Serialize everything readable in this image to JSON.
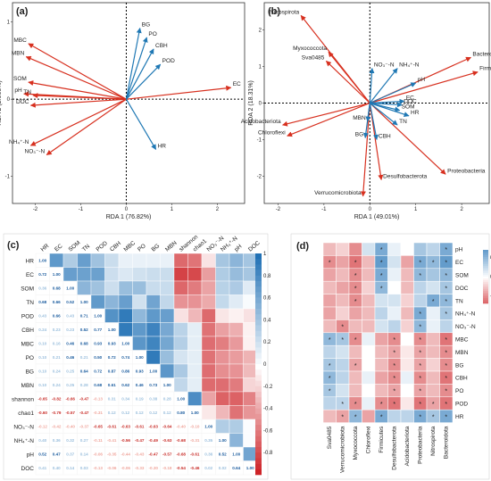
{
  "panels": {
    "a": {
      "label": "(a)",
      "xlabel": "RDA 1 (76.82%)",
      "ylabel": "RDA 2 (2.666%)",
      "xticks": [
        "-2",
        "-1",
        "0",
        "1",
        "2"
      ],
      "yticks": [
        "1",
        "0",
        "-1"
      ],
      "red_arrows": [
        {
          "name": "MBC",
          "x": -2.15,
          "y": 0.72
        },
        {
          "name": "MBN",
          "x": -2.2,
          "y": 0.55
        },
        {
          "name": "SOM",
          "x": -2.15,
          "y": 0.22
        },
        {
          "name": "pH",
          "x": -2.25,
          "y": 0.07
        },
        {
          "name": "TN",
          "x": -2.05,
          "y": 0.05
        },
        {
          "name": "DOC",
          "x": -2.1,
          "y": -0.08
        },
        {
          "name": "NH₄⁺-N",
          "x": -2.1,
          "y": -0.6
        },
        {
          "name": "NO₃⁻-N",
          "x": -1.75,
          "y": -0.72
        },
        {
          "name": "EC",
          "x": 2.3,
          "y": 0.15
        }
      ],
      "blue_arrows": [
        {
          "name": "BG",
          "x": 0.3,
          "y": 0.92
        },
        {
          "name": "PO",
          "x": 0.45,
          "y": 0.8
        },
        {
          "name": "CBH",
          "x": 0.6,
          "y": 0.65
        },
        {
          "name": "POD",
          "x": 0.75,
          "y": 0.45
        },
        {
          "name": "HR",
          "x": 0.65,
          "y": -0.65
        }
      ]
    },
    "b": {
      "label": "(b)",
      "xlabel": "RDA 1 (49.01%)",
      "ylabel": "RDA 2 (18.31%)",
      "xticks": [
        "-2",
        "-1",
        "0",
        "1",
        "2"
      ],
      "yticks": [
        "2",
        "1",
        "0",
        "-1",
        "-2"
      ],
      "red_arrows": [
        {
          "name": "Nitrospirota",
          "x": -1.5,
          "y": 2.4
        },
        {
          "name": "Myxococcota",
          "x": -0.9,
          "y": 1.4
        },
        {
          "name": "Sva0485",
          "x": -0.95,
          "y": 1.15
        },
        {
          "name": "Bacteroidota",
          "x": 2.2,
          "y": 1.25
        },
        {
          "name": "Firmicutes",
          "x": 2.35,
          "y": 0.85
        },
        {
          "name": "Acidobacteriota",
          "x": -1.9,
          "y": -0.6
        },
        {
          "name": "Chloroflexi",
          "x": -1.8,
          "y": -0.9
        },
        {
          "name": "Desulfobacterota",
          "x": 0.25,
          "y": -2.1
        },
        {
          "name": "Verrucomicrobiota",
          "x": -0.15,
          "y": -2.55
        },
        {
          "name": "Proteobacteria",
          "x": 1.65,
          "y": -1.95
        }
      ],
      "blue_arrows": [
        {
          "name": "NO₃⁻-N",
          "x": 0.05,
          "y": 0.95
        },
        {
          "name": "NH₄⁺-N",
          "x": 0.6,
          "y": 0.95
        },
        {
          "name": "pH",
          "x": 1.0,
          "y": 0.55
        },
        {
          "name": "EC",
          "x": 0.75,
          "y": 0.05
        },
        {
          "name": "DOC",
          "x": 0.7,
          "y": -0.05
        },
        {
          "name": "SOM",
          "x": 0.65,
          "y": -0.2
        },
        {
          "name": "HR",
          "x": 0.85,
          "y": -0.35
        },
        {
          "name": "TN",
          "x": 0.6,
          "y": -0.6
        },
        {
          "name": "MBN",
          "x": -0.05,
          "y": -0.5
        },
        {
          "name": "BG",
          "x": -0.1,
          "y": -0.95
        },
        {
          "name": "CBH",
          "x": 0.15,
          "y": -1.0
        }
      ]
    },
    "c": {
      "label": "(c)",
      "vars": [
        "HR",
        "EC",
        "SOM",
        "TN",
        "POD",
        "CBH",
        "MBC",
        "PO",
        "BG",
        "MBN",
        "shannon",
        "chao1",
        "NO₃⁻-N",
        "NH₄⁺-N",
        "pH",
        "DOC"
      ],
      "matrix": [
        [
          1.0,
          null,
          null,
          null,
          null,
          null,
          null,
          null,
          null,
          null,
          null,
          null,
          null,
          null,
          null,
          null
        ],
        [
          0.72,
          1.0,
          null,
          null,
          null,
          null,
          null,
          null,
          null,
          null,
          null,
          null,
          null,
          null,
          null,
          null
        ],
        [
          0.36,
          0.68,
          1.0,
          null,
          null,
          null,
          null,
          null,
          null,
          null,
          null,
          null,
          null,
          null,
          null,
          null
        ],
        [
          0.68,
          0.66,
          0.52,
          1.0,
          null,
          null,
          null,
          null,
          null,
          null,
          null,
          null,
          null,
          null,
          null,
          null
        ],
        [
          0.43,
          0.66,
          0.43,
          0.71,
          1.0,
          null,
          null,
          null,
          null,
          null,
          null,
          null,
          null,
          null,
          null,
          null
        ],
        [
          0.24,
          0.23,
          0.23,
          0.52,
          0.77,
          1.0,
          null,
          null,
          null,
          null,
          null,
          null,
          null,
          null,
          null,
          null
        ],
        [
          0.1,
          0.16,
          0.46,
          0.68,
          0.93,
          0.93,
          1.0,
          null,
          null,
          null,
          null,
          null,
          null,
          null,
          null,
          null
        ],
        [
          0.1,
          0.21,
          0.46,
          0.21,
          0.5,
          0.72,
          0.74,
          1.0,
          null,
          null,
          null,
          null,
          null,
          null,
          null,
          null
        ],
        [
          0.1,
          0.24,
          0.25,
          0.64,
          0.72,
          0.87,
          0.86,
          0.93,
          1.0,
          null,
          null,
          null,
          null,
          null,
          null,
          null
        ],
        [
          0.1,
          0.24,
          0.25,
          0.28,
          0.68,
          0.61,
          0.62,
          0.46,
          0.73,
          1.0,
          null,
          null,
          null,
          null,
          null,
          null
        ],
        [
          -0.65,
          -0.82,
          -0.66,
          -0.47,
          -0.13,
          0.31,
          0.34,
          0.19,
          0.38,
          0.28,
          1.0,
          null,
          null,
          null,
          null,
          null
        ],
        [
          -0.6,
          -0.79,
          -0.57,
          -0.47,
          -0.31,
          0.12,
          0.12,
          0.12,
          0.12,
          0.12,
          0.8,
          1.0,
          null,
          null,
          null,
          null
        ],
        [
          -0.12,
          -0.42,
          -0.4,
          -0.37,
          -0.65,
          -0.61,
          -0.63,
          -0.61,
          -0.63,
          -0.64,
          -0.4,
          -0.1,
          1.0,
          null,
          null,
          null
        ],
        [
          0.4,
          0.36,
          0.32,
          0.27,
          -0.11,
          -0.41,
          -0.56,
          -0.47,
          -0.49,
          -0.63,
          -0.68,
          -0.31,
          0.35,
          1.0,
          null,
          null
        ],
        [
          0.52,
          0.47,
          0.37,
          0.14,
          -0.06,
          -0.35,
          -0.44,
          -0.43,
          -0.47,
          -0.57,
          -0.68,
          -0.61,
          0.36,
          0.52,
          1.0,
          null
        ],
        [
          0.41,
          0.4,
          0.14,
          0.03,
          -0.13,
          -0.06,
          -0.06,
          -0.33,
          -0.3,
          -0.18,
          -0.54,
          -0.46,
          0.02,
          0.02,
          0.64,
          1.0
        ]
      ],
      "colorbar_ticks": [
        "1",
        "0.8",
        "0.6",
        "0.4",
        "0.2",
        "0",
        "-0.2",
        "-0.4",
        "-0.6",
        "-0.8"
      ]
    },
    "d": {
      "label": "(d)",
      "rows": [
        "pH",
        "EC",
        "SOM",
        "DOC",
        "TN",
        "NH₄⁺-N",
        "NO₃⁻-N",
        "MBC",
        "MBN",
        "BG",
        "CBH",
        "PO",
        "POD",
        "HR"
      ],
      "cols": [
        "Sva0485",
        "Verrucomicrobiota",
        "Myxococcota",
        "Chloroflexi",
        "Firmicutes",
        "Desulfobacterota",
        "Acidobacteriota",
        "Proteobacteria",
        "Nitrospirota",
        "Bacteroidota"
      ],
      "matrix": [
        [
          -0.3,
          -0.2,
          -0.5,
          0.2,
          0.6,
          0.1,
          0.0,
          0.4,
          0.3,
          0.6
        ],
        [
          -0.5,
          -0.4,
          -0.6,
          -0.3,
          0.7,
          0.2,
          -0.4,
          0.6,
          0.5,
          0.7
        ],
        [
          -0.4,
          -0.3,
          -0.5,
          -0.3,
          0.6,
          0.1,
          -0.3,
          0.5,
          0.4,
          0.5
        ],
        [
          -0.3,
          -0.4,
          -0.5,
          -0.2,
          0.5,
          0.0,
          -0.3,
          0.3,
          0.2,
          0.4
        ],
        [
          -0.4,
          -0.3,
          -0.5,
          -0.3,
          0.2,
          0.2,
          -0.2,
          0.3,
          0.6,
          0.5
        ],
        [
          -0.4,
          -0.2,
          -0.4,
          -0.3,
          0.3,
          0.1,
          -0.3,
          0.6,
          0.1,
          0.4
        ],
        [
          -0.3,
          -0.5,
          -0.3,
          -0.3,
          0.2,
          0.3,
          -0.2,
          0.5,
          0.1,
          0.3
        ],
        [
          0.5,
          0.4,
          -0.5,
          0.1,
          -0.4,
          -0.5,
          0.0,
          -0.5,
          -0.3,
          -0.6
        ],
        [
          0.3,
          0.2,
          -0.3,
          0.0,
          -0.3,
          -0.4,
          -0.1,
          -0.4,
          -0.3,
          -0.5
        ],
        [
          0.4,
          0.3,
          -0.4,
          0.0,
          -0.3,
          -0.5,
          -0.1,
          -0.4,
          -0.2,
          -0.5
        ],
        [
          0.5,
          0.3,
          -0.3,
          0.1,
          -0.4,
          -0.5,
          0.1,
          -0.5,
          -0.3,
          -0.6
        ],
        [
          0.4,
          0.2,
          -0.3,
          0.0,
          -0.3,
          -0.4,
          0.0,
          -0.4,
          -0.3,
          -0.5
        ],
        [
          0.3,
          0.3,
          -0.5,
          0.1,
          -0.5,
          -0.6,
          -0.1,
          -0.6,
          -0.4,
          -0.6
        ],
        [
          -0.3,
          -0.4,
          0.5,
          -0.4,
          0.6,
          0.3,
          0.3,
          0.6,
          0.4,
          0.6
        ]
      ],
      "stars": [
        [
          0,
          0,
          0,
          0,
          1,
          0,
          0,
          0,
          0,
          1
        ],
        [
          1,
          0,
          1,
          0,
          1,
          0,
          0,
          1,
          1,
          1
        ],
        [
          0,
          0,
          1,
          0,
          1,
          0,
          0,
          1,
          0,
          1
        ],
        [
          0,
          0,
          1,
          0,
          1,
          0,
          0,
          0,
          0,
          1
        ],
        [
          0,
          0,
          1,
          0,
          0,
          0,
          0,
          0,
          1,
          1
        ],
        [
          0,
          0,
          0,
          0,
          0,
          0,
          0,
          1,
          0,
          1
        ],
        [
          0,
          1,
          0,
          0,
          0,
          0,
          0,
          1,
          0,
          0
        ],
        [
          1,
          1,
          1,
          0,
          0,
          1,
          0,
          1,
          0,
          1
        ],
        [
          0,
          0,
          0,
          0,
          0,
          1,
          0,
          1,
          0,
          1
        ],
        [
          1,
          0,
          1,
          0,
          0,
          1,
          0,
          1,
          0,
          1
        ],
        [
          1,
          0,
          0,
          0,
          0,
          1,
          0,
          1,
          0,
          1
        ],
        [
          1,
          0,
          0,
          0,
          0,
          1,
          0,
          1,
          0,
          1
        ],
        [
          0,
          1,
          1,
          0,
          1,
          1,
          0,
          1,
          1,
          1
        ],
        [
          0,
          1,
          1,
          0,
          1,
          0,
          0,
          1,
          1,
          1
        ]
      ],
      "colorbar_ticks": [
        "0.5",
        "0",
        "-0.5"
      ]
    }
  },
  "colors": {
    "red": "#d7301f",
    "blue": "#1f78b4"
  }
}
